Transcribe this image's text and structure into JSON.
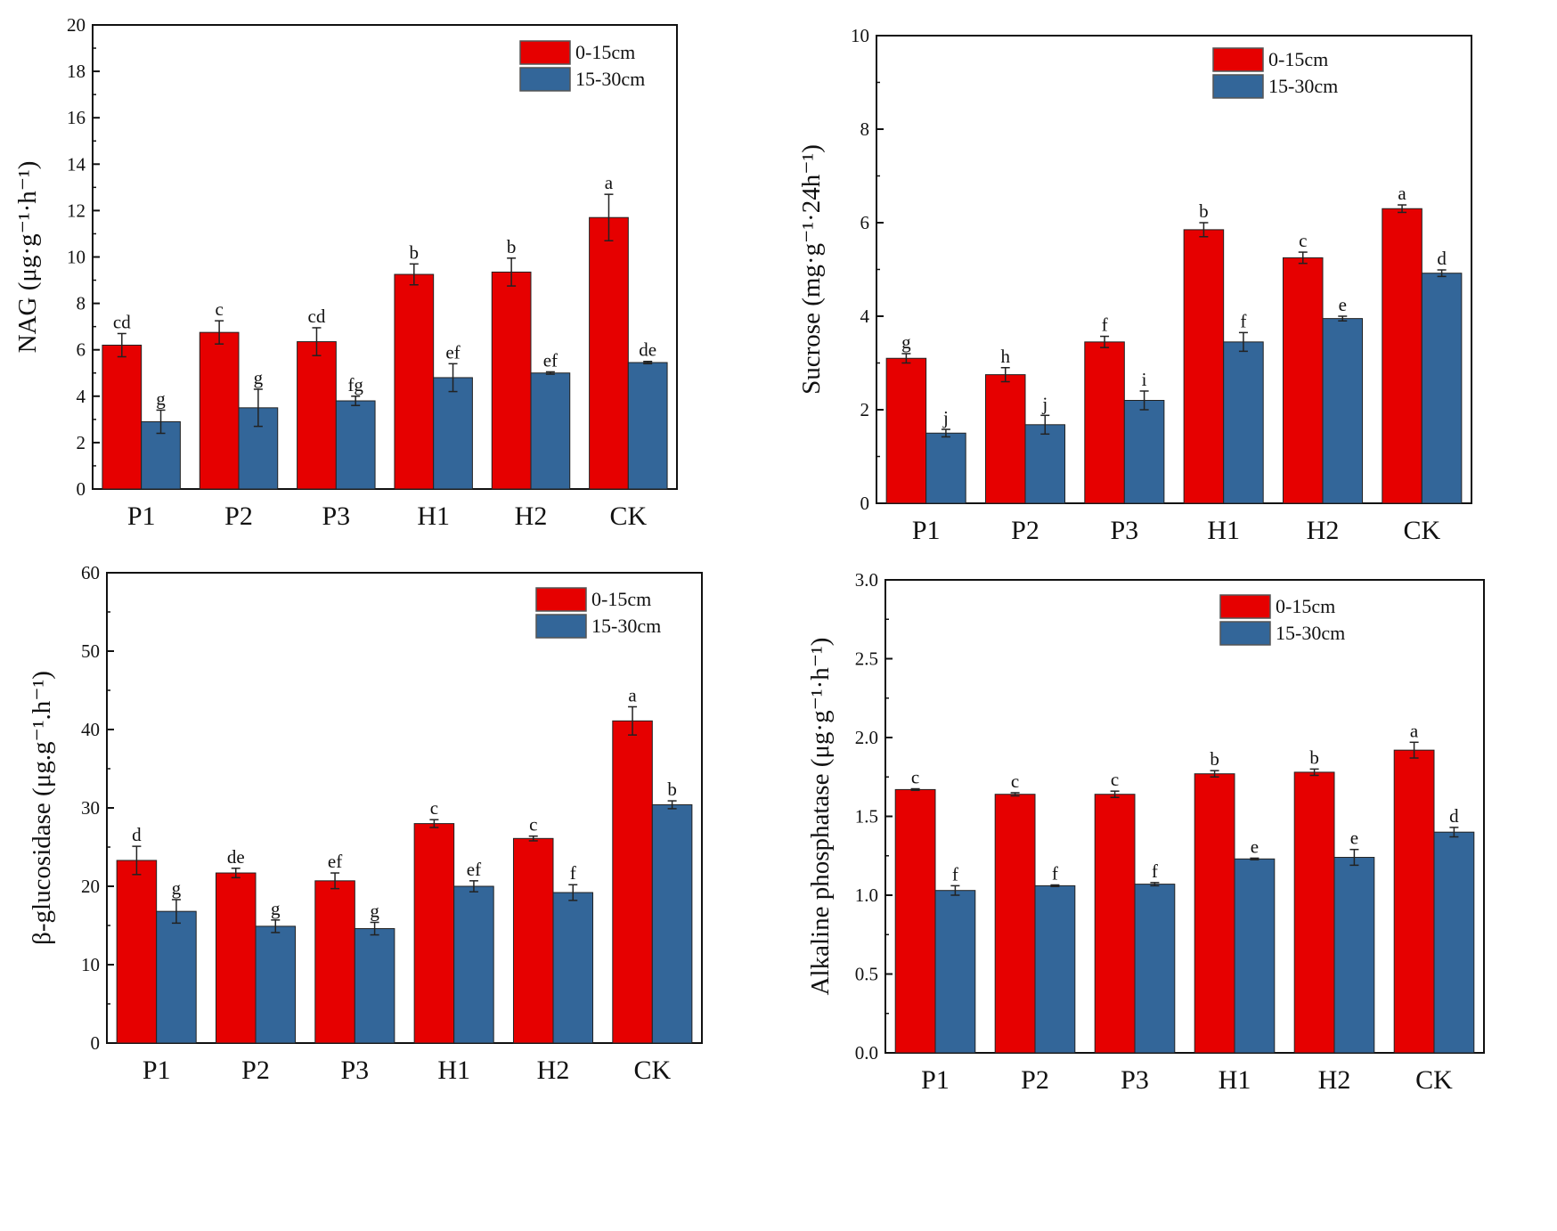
{
  "chart_data": [
    {
      "type": "bar",
      "categories": [
        "P1",
        "P2",
        "P3",
        "H1",
        "H2",
        "CK"
      ],
      "ylabel": "NAG (μg·g⁻¹·h⁻¹)",
      "ylim": [
        0,
        20
      ],
      "yticks": [
        0,
        2,
        4,
        6,
        8,
        10,
        12,
        14,
        16,
        18,
        20
      ],
      "legend_position": "top-right",
      "series": [
        {
          "name": "0-15cm",
          "color": "#e60000",
          "values": [
            6.2,
            6.75,
            6.35,
            9.25,
            9.35,
            11.7
          ],
          "errors": [
            0.5,
            0.5,
            0.6,
            0.45,
            0.6,
            1.0
          ],
          "letters": [
            "cd",
            "c",
            "cd",
            "b",
            "b",
            "a"
          ]
        },
        {
          "name": "15-30cm",
          "color": "#336699",
          "values": [
            2.9,
            3.5,
            3.8,
            4.8,
            5.0,
            5.45
          ],
          "errors": [
            0.5,
            0.8,
            0.2,
            0.6,
            0.05,
            0.05
          ],
          "letters": [
            "g",
            "g",
            "fg",
            "ef",
            "ef",
            "de"
          ]
        }
      ]
    },
    {
      "type": "bar",
      "categories": [
        "P1",
        "P2",
        "P3",
        "H1",
        "H2",
        "CK"
      ],
      "ylabel": "Sucrose (mg·g⁻¹·24h⁻¹)",
      "ylim": [
        0,
        10
      ],
      "yticks": [
        0,
        2,
        4,
        6,
        8,
        10
      ],
      "legend_position": "top-right",
      "series": [
        {
          "name": "0-15cm",
          "color": "#e60000",
          "values": [
            3.1,
            2.75,
            3.45,
            5.85,
            5.25,
            6.3
          ],
          "errors": [
            0.1,
            0.15,
            0.12,
            0.15,
            0.12,
            0.08
          ],
          "letters": [
            "g",
            "h",
            "f",
            "b",
            "c",
            "a"
          ]
        },
        {
          "name": "15-30cm",
          "color": "#336699",
          "values": [
            1.5,
            1.68,
            2.2,
            3.45,
            3.95,
            4.92
          ],
          "errors": [
            0.08,
            0.2,
            0.2,
            0.2,
            0.05,
            0.07
          ],
          "letters": [
            "j",
            "j",
            "i",
            "f",
            "e",
            "d"
          ]
        }
      ]
    },
    {
      "type": "bar",
      "categories": [
        "P1",
        "P2",
        "P3",
        "H1",
        "H2",
        "CK"
      ],
      "ylabel": "β-glucosidase (μg.g⁻¹.h⁻¹)",
      "ylim": [
        0,
        60
      ],
      "yticks": [
        0,
        10,
        20,
        30,
        40,
        50,
        60
      ],
      "legend_position": "top-right",
      "series": [
        {
          "name": "0-15cm",
          "color": "#e60000",
          "values": [
            23.3,
            21.7,
            20.7,
            28.0,
            26.1,
            41.1
          ],
          "errors": [
            1.8,
            0.6,
            1.0,
            0.5,
            0.3,
            1.8
          ],
          "letters": [
            "d",
            "de",
            "ef",
            "c",
            "c",
            "a"
          ]
        },
        {
          "name": "15-30cm",
          "color": "#336699",
          "values": [
            16.8,
            14.9,
            14.6,
            20.0,
            19.2,
            30.4
          ],
          "errors": [
            1.5,
            0.8,
            0.8,
            0.7,
            1.0,
            0.5
          ],
          "letters": [
            "g",
            "g",
            "g",
            "ef",
            "f",
            "b"
          ]
        }
      ]
    },
    {
      "type": "bar",
      "categories": [
        "P1",
        "P2",
        "P3",
        "H1",
        "H2",
        "CK"
      ],
      "ylabel": "Alkaline phosphatase (μg·g⁻¹·h⁻¹)",
      "ylim": [
        0,
        3.0
      ],
      "yticks": [
        "0.0",
        "0.5",
        "1.0",
        "1.5",
        "2.0",
        "2.5",
        "3.0"
      ],
      "legend_position": "top-right",
      "series": [
        {
          "name": "0-15cm",
          "color": "#e60000",
          "values": [
            1.67,
            1.64,
            1.64,
            1.77,
            1.78,
            1.92
          ],
          "errors": [
            0.005,
            0.01,
            0.02,
            0.02,
            0.02,
            0.05
          ],
          "letters": [
            "c",
            "c",
            "c",
            "b",
            "b",
            "a"
          ]
        },
        {
          "name": "15-30cm",
          "color": "#336699",
          "values": [
            1.03,
            1.06,
            1.07,
            1.23,
            1.24,
            1.4
          ],
          "errors": [
            0.03,
            0.005,
            0.01,
            0.005,
            0.05,
            0.03
          ],
          "letters": [
            "f",
            "f",
            "f",
            "e",
            "e",
            "d"
          ]
        }
      ]
    }
  ]
}
